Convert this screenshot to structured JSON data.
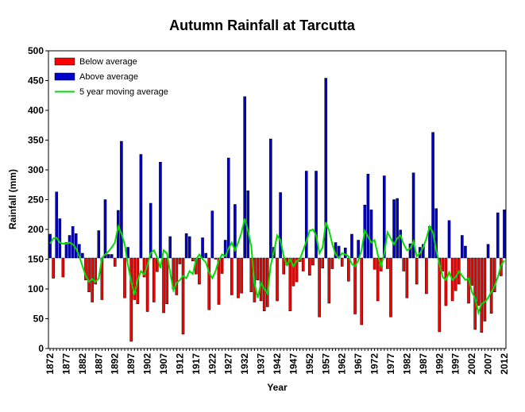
{
  "chart_data": {
    "type": "bar",
    "title": "Autumn Rainfall at Tarcutta",
    "xlabel": "Year",
    "ylabel": "Rainfall (mm)",
    "ylim": [
      0,
      500
    ],
    "yticks": [
      0,
      50,
      100,
      150,
      200,
      250,
      300,
      350,
      400,
      450,
      500
    ],
    "baseline": 152,
    "xtick_labels": [
      "1872",
      "1877",
      "1882",
      "1887",
      "1892",
      "1897",
      "1902",
      "1907",
      "1912",
      "1917",
      "1922",
      "1927",
      "1932",
      "1937",
      "1942",
      "1947",
      "1952",
      "1957",
      "1962",
      "1967",
      "1972",
      "1977",
      "1982",
      "1987",
      "1992",
      "1997",
      "2002",
      "2007",
      "2012"
    ],
    "grid": false,
    "legend_position": "top-left",
    "series": [
      {
        "name": "Below average",
        "type": "bar",
        "color": "#ff0000"
      },
      {
        "name": "Above average",
        "type": "bar",
        "color": "#0000cc"
      },
      {
        "name": "5 year moving average",
        "type": "line",
        "color": "#00dd00"
      }
    ],
    "x": [
      1872,
      1873,
      1874,
      1875,
      1876,
      1877,
      1878,
      1879,
      1880,
      1881,
      1882,
      1883,
      1884,
      1885,
      1886,
      1887,
      1888,
      1889,
      1890,
      1891,
      1892,
      1893,
      1894,
      1895,
      1896,
      1897,
      1898,
      1899,
      1900,
      1901,
      1902,
      1903,
      1904,
      1905,
      1906,
      1907,
      1908,
      1909,
      1910,
      1911,
      1912,
      1913,
      1914,
      1915,
      1916,
      1917,
      1918,
      1919,
      1920,
      1921,
      1922,
      1923,
      1924,
      1925,
      1926,
      1927,
      1928,
      1929,
      1930,
      1931,
      1932,
      1933,
      1934,
      1935,
      1936,
      1937,
      1938,
      1939,
      1940,
      1941,
      1942,
      1943,
      1944,
      1945,
      1946,
      1947,
      1948,
      1949,
      1950,
      1951,
      1952,
      1953,
      1954,
      1955,
      1956,
      1957,
      1958,
      1959,
      1960,
      1961,
      1962,
      1963,
      1964,
      1965,
      1966,
      1967,
      1968,
      1969,
      1970,
      1971,
      1972,
      1973,
      1974,
      1975,
      1976,
      1977,
      1978,
      1979,
      1980,
      1981,
      1982,
      1983,
      1984,
      1985,
      1986,
      1987,
      1988,
      1989,
      1990,
      1991,
      1992,
      1993,
      1994,
      1995,
      1996,
      1997,
      1998,
      1999,
      2000,
      2001,
      2002,
      2003,
      2004,
      2005,
      2006,
      2007,
      2008,
      2009,
      2010,
      2011,
      2012
    ],
    "rainfall": [
      192,
      118,
      263,
      218,
      120,
      178,
      190,
      205,
      193,
      175,
      160,
      115,
      95,
      78,
      108,
      198,
      82,
      250,
      158,
      158,
      138,
      232,
      348,
      85,
      170,
      12,
      82,
      75,
      326,
      120,
      62,
      244,
      78,
      129,
      313,
      60,
      75,
      188,
      100,
      90,
      142,
      24,
      193,
      188,
      147,
      125,
      108,
      186,
      160,
      65,
      231,
      150,
      74,
      126,
      182,
      320,
      90,
      242,
      85,
      93,
      423,
      265,
      95,
      78,
      115,
      80,
      63,
      70,
      352,
      170,
      80,
      262,
      125,
      140,
      63,
      105,
      112,
      146,
      130,
      298,
      123,
      140,
      298,
      53,
      135,
      454,
      76,
      134,
      178,
      172,
      138,
      169,
      113,
      192,
      58,
      182,
      40,
      241,
      293,
      233,
      133,
      80,
      130,
      290,
      134,
      53,
      250,
      252,
      199,
      130,
      85,
      176,
      295,
      108,
      170,
      175,
      92,
      205,
      363,
      235,
      28,
      130,
      72,
      215,
      80,
      97,
      108,
      190,
      172,
      76,
      106,
      32,
      72,
      27,
      46,
      175,
      59,
      95,
      228,
      122,
      233
    ],
    "moving_average": [
      176,
      185,
      186,
      178,
      176,
      176,
      178,
      175,
      168,
      155,
      138,
      122,
      112,
      117,
      112,
      118,
      152,
      158,
      163,
      170,
      178,
      205,
      193,
      175,
      140,
      113,
      90,
      115,
      130,
      124,
      140,
      160,
      165,
      153,
      135,
      165,
      160,
      128,
      98,
      110,
      115,
      122,
      118,
      130,
      125,
      150,
      158,
      150,
      145,
      128,
      118,
      130,
      148,
      158,
      155,
      168,
      178,
      165,
      178,
      195,
      218,
      198,
      172,
      110,
      85,
      110,
      100,
      92,
      140,
      163,
      190,
      182,
      155,
      140,
      150,
      138,
      147,
      150,
      165,
      180,
      198,
      200,
      190,
      160,
      170,
      212,
      198,
      175,
      158,
      152,
      160,
      158,
      155,
      142,
      138,
      148,
      165,
      198,
      188,
      178,
      182,
      158,
      138,
      160,
      195,
      185,
      175,
      185,
      190,
      175,
      165,
      168,
      180,
      155,
      160,
      170,
      185,
      205,
      195,
      165,
      142,
      120,
      115,
      128,
      115,
      120,
      130,
      122,
      115,
      118,
      95,
      85,
      60,
      75,
      78,
      85,
      95,
      105,
      120,
      140,
      148
    ]
  }
}
